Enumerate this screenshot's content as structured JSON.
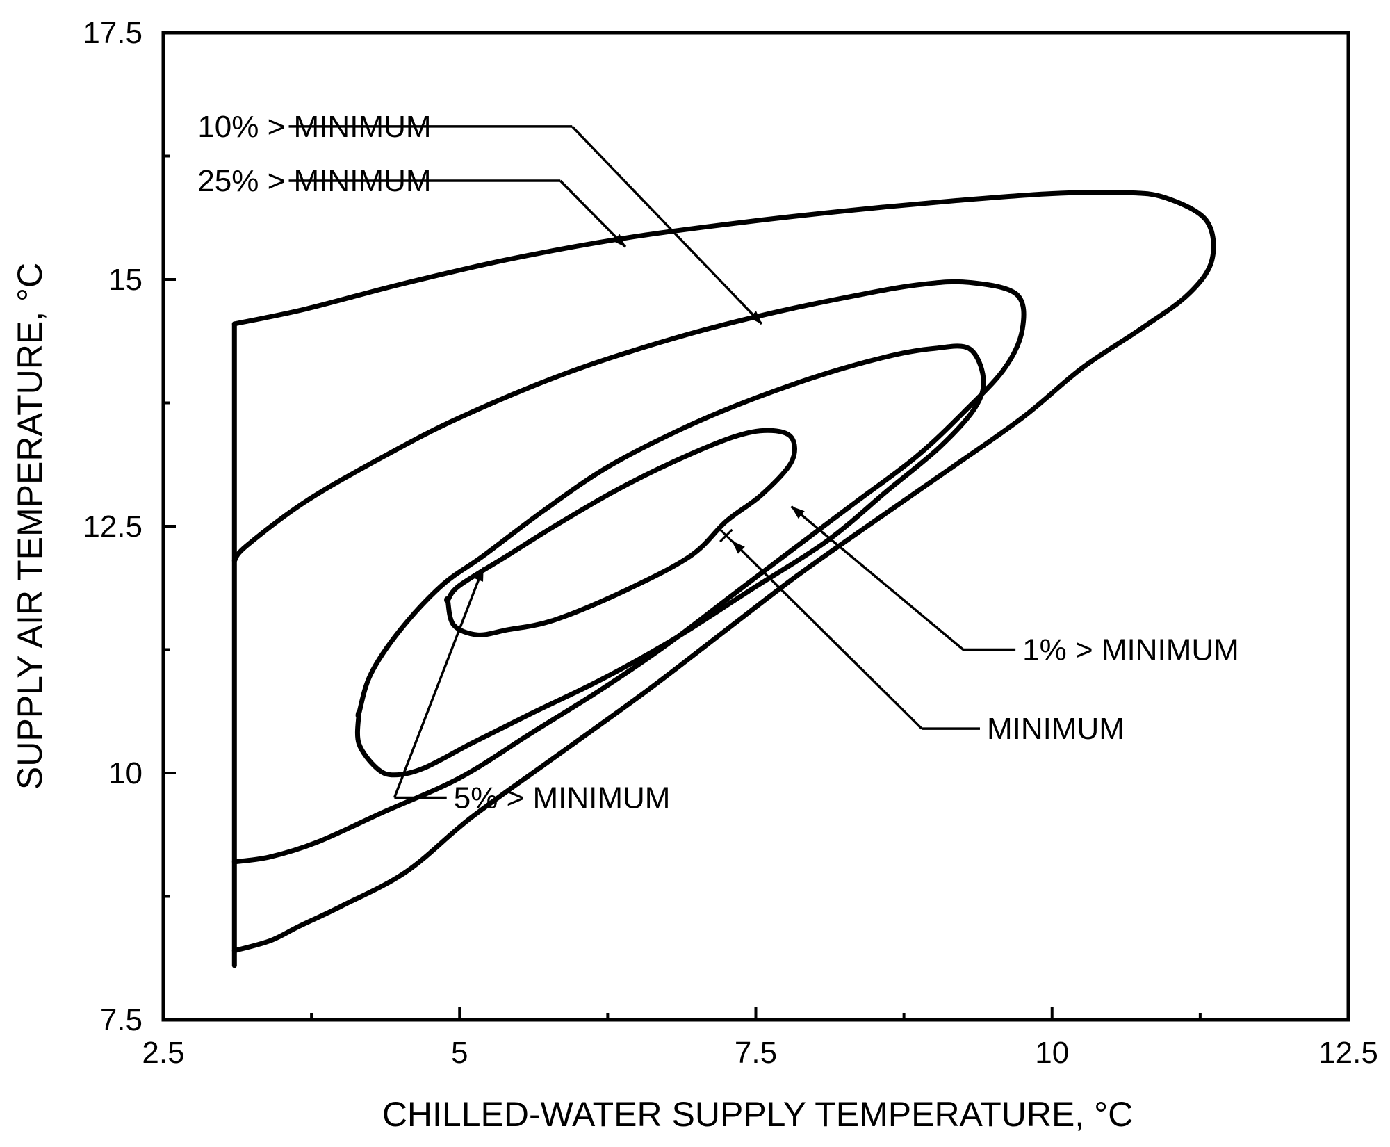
{
  "chart_data": {
    "type": "line",
    "chart_kind": "contour",
    "xlabel": "CHILLED-WATER SUPPLY TEMPERATURE, °C",
    "ylabel": "SUPPLY AIR TEMPERATURE, °C",
    "xlim": [
      2.5,
      12.5
    ],
    "ylim": [
      7.5,
      17.5
    ],
    "x_ticks": [
      "2.5",
      "5",
      "7.5",
      "10",
      "12.5"
    ],
    "y_ticks": [
      "17.5",
      "15",
      "12.5",
      "10",
      "7.5"
    ],
    "grid": false,
    "legend": "none",
    "minimum_point": {
      "x": 7.25,
      "y": 12.4,
      "marker": "×"
    },
    "series": [
      {
        "name": "1% > MINIMUM",
        "closed": true,
        "points": [
          [
            4.9,
            11.75
          ],
          [
            5.0,
            11.9
          ],
          [
            5.4,
            12.2
          ],
          [
            5.8,
            12.5
          ],
          [
            6.3,
            12.85
          ],
          [
            6.8,
            13.15
          ],
          [
            7.3,
            13.4
          ],
          [
            7.6,
            13.47
          ],
          [
            7.8,
            13.4
          ],
          [
            7.8,
            13.15
          ],
          [
            7.55,
            12.82
          ],
          [
            7.25,
            12.55
          ],
          [
            6.95,
            12.2
          ],
          [
            6.4,
            11.85
          ],
          [
            5.8,
            11.55
          ],
          [
            5.4,
            11.45
          ],
          [
            5.15,
            11.4
          ],
          [
            4.95,
            11.5
          ],
          [
            4.9,
            11.75
          ]
        ]
      },
      {
        "name": "5% > MINIMUM",
        "closed": true,
        "points": [
          [
            4.15,
            10.6
          ],
          [
            4.25,
            11.0
          ],
          [
            4.5,
            11.45
          ],
          [
            4.85,
            11.9
          ],
          [
            5.2,
            12.2
          ],
          [
            5.7,
            12.65
          ],
          [
            6.25,
            13.1
          ],
          [
            6.9,
            13.5
          ],
          [
            7.5,
            13.8
          ],
          [
            8.1,
            14.05
          ],
          [
            8.65,
            14.23
          ],
          [
            9.0,
            14.3
          ],
          [
            9.3,
            14.3
          ],
          [
            9.42,
            14.0
          ],
          [
            9.35,
            13.7
          ],
          [
            9.05,
            13.3
          ],
          [
            8.6,
            12.85
          ],
          [
            8.1,
            12.35
          ],
          [
            7.45,
            11.85
          ],
          [
            6.8,
            11.35
          ],
          [
            6.2,
            10.95
          ],
          [
            5.6,
            10.6
          ],
          [
            5.1,
            10.3
          ],
          [
            4.7,
            10.05
          ],
          [
            4.45,
            9.98
          ],
          [
            4.3,
            10.05
          ],
          [
            4.15,
            10.3
          ],
          [
            4.15,
            10.6
          ]
        ]
      },
      {
        "name": "10% > MINIMUM",
        "closed": false,
        "points": [
          [
            3.1,
            12.15
          ],
          [
            3.2,
            12.3
          ],
          [
            3.7,
            12.75
          ],
          [
            4.35,
            13.2
          ],
          [
            5.0,
            13.6
          ],
          [
            5.9,
            14.05
          ],
          [
            6.8,
            14.4
          ],
          [
            7.6,
            14.65
          ],
          [
            8.4,
            14.85
          ],
          [
            8.9,
            14.95
          ],
          [
            9.3,
            14.97
          ],
          [
            9.7,
            14.85
          ],
          [
            9.75,
            14.5
          ],
          [
            9.6,
            14.1
          ],
          [
            9.25,
            13.65
          ],
          [
            8.85,
            13.2
          ],
          [
            8.35,
            12.75
          ],
          [
            7.85,
            12.3
          ],
          [
            7.3,
            11.8
          ],
          [
            6.75,
            11.3
          ],
          [
            6.2,
            10.85
          ],
          [
            5.6,
            10.4
          ],
          [
            5.0,
            9.95
          ],
          [
            4.35,
            9.6
          ],
          [
            3.8,
            9.3
          ],
          [
            3.4,
            9.15
          ],
          [
            3.1,
            9.1
          ]
        ]
      },
      {
        "name": "25% > MINIMUM",
        "closed": false,
        "points": [
          [
            3.1,
            14.55
          ],
          [
            3.7,
            14.7
          ],
          [
            4.5,
            14.95
          ],
          [
            5.4,
            15.2
          ],
          [
            6.4,
            15.42
          ],
          [
            7.4,
            15.58
          ],
          [
            8.3,
            15.7
          ],
          [
            9.2,
            15.8
          ],
          [
            10.0,
            15.87
          ],
          [
            10.6,
            15.88
          ],
          [
            10.95,
            15.83
          ],
          [
            11.3,
            15.6
          ],
          [
            11.35,
            15.2
          ],
          [
            11.15,
            14.85
          ],
          [
            10.75,
            14.5
          ],
          [
            10.25,
            14.1
          ],
          [
            9.75,
            13.6
          ],
          [
            9.1,
            13.05
          ],
          [
            8.5,
            12.55
          ],
          [
            7.85,
            12.0
          ],
          [
            7.25,
            11.45
          ],
          [
            6.6,
            10.85
          ],
          [
            5.85,
            10.2
          ],
          [
            5.1,
            9.55
          ],
          [
            4.55,
            9.0
          ],
          [
            4.0,
            8.65
          ],
          [
            3.65,
            8.45
          ],
          [
            3.4,
            8.3
          ],
          [
            3.1,
            8.2
          ]
        ]
      },
      {
        "name": "boundary",
        "closed": false,
        "points": [
          [
            3.1,
            14.55
          ],
          [
            3.1,
            8.05
          ]
        ]
      }
    ],
    "annotations": [
      {
        "text": "10% > MINIMUM",
        "pos": [
          3.5,
          16.55
        ],
        "elbow": [
          5.95,
          16.55
        ],
        "target": [
          7.55,
          14.55
        ]
      },
      {
        "text": "25% > MINIMUM",
        "pos": [
          3.5,
          16.0
        ],
        "elbow": [
          5.85,
          16.0
        ],
        "target": [
          6.4,
          15.33
        ]
      },
      {
        "text": "1% > MINIMUM",
        "pos": [
          9.75,
          11.25
        ],
        "elbow": [
          9.25,
          11.25
        ],
        "target": [
          7.8,
          12.7
        ]
      },
      {
        "text": "MINIMUM",
        "pos": [
          9.45,
          10.45
        ],
        "elbow": [
          8.9,
          10.45
        ],
        "target": [
          7.3,
          12.35
        ]
      },
      {
        "text": "5% > MINIMUM",
        "pos": [
          4.95,
          9.75
        ],
        "elbow": [
          4.45,
          9.75
        ],
        "target": [
          5.2,
          12.08
        ]
      }
    ]
  }
}
